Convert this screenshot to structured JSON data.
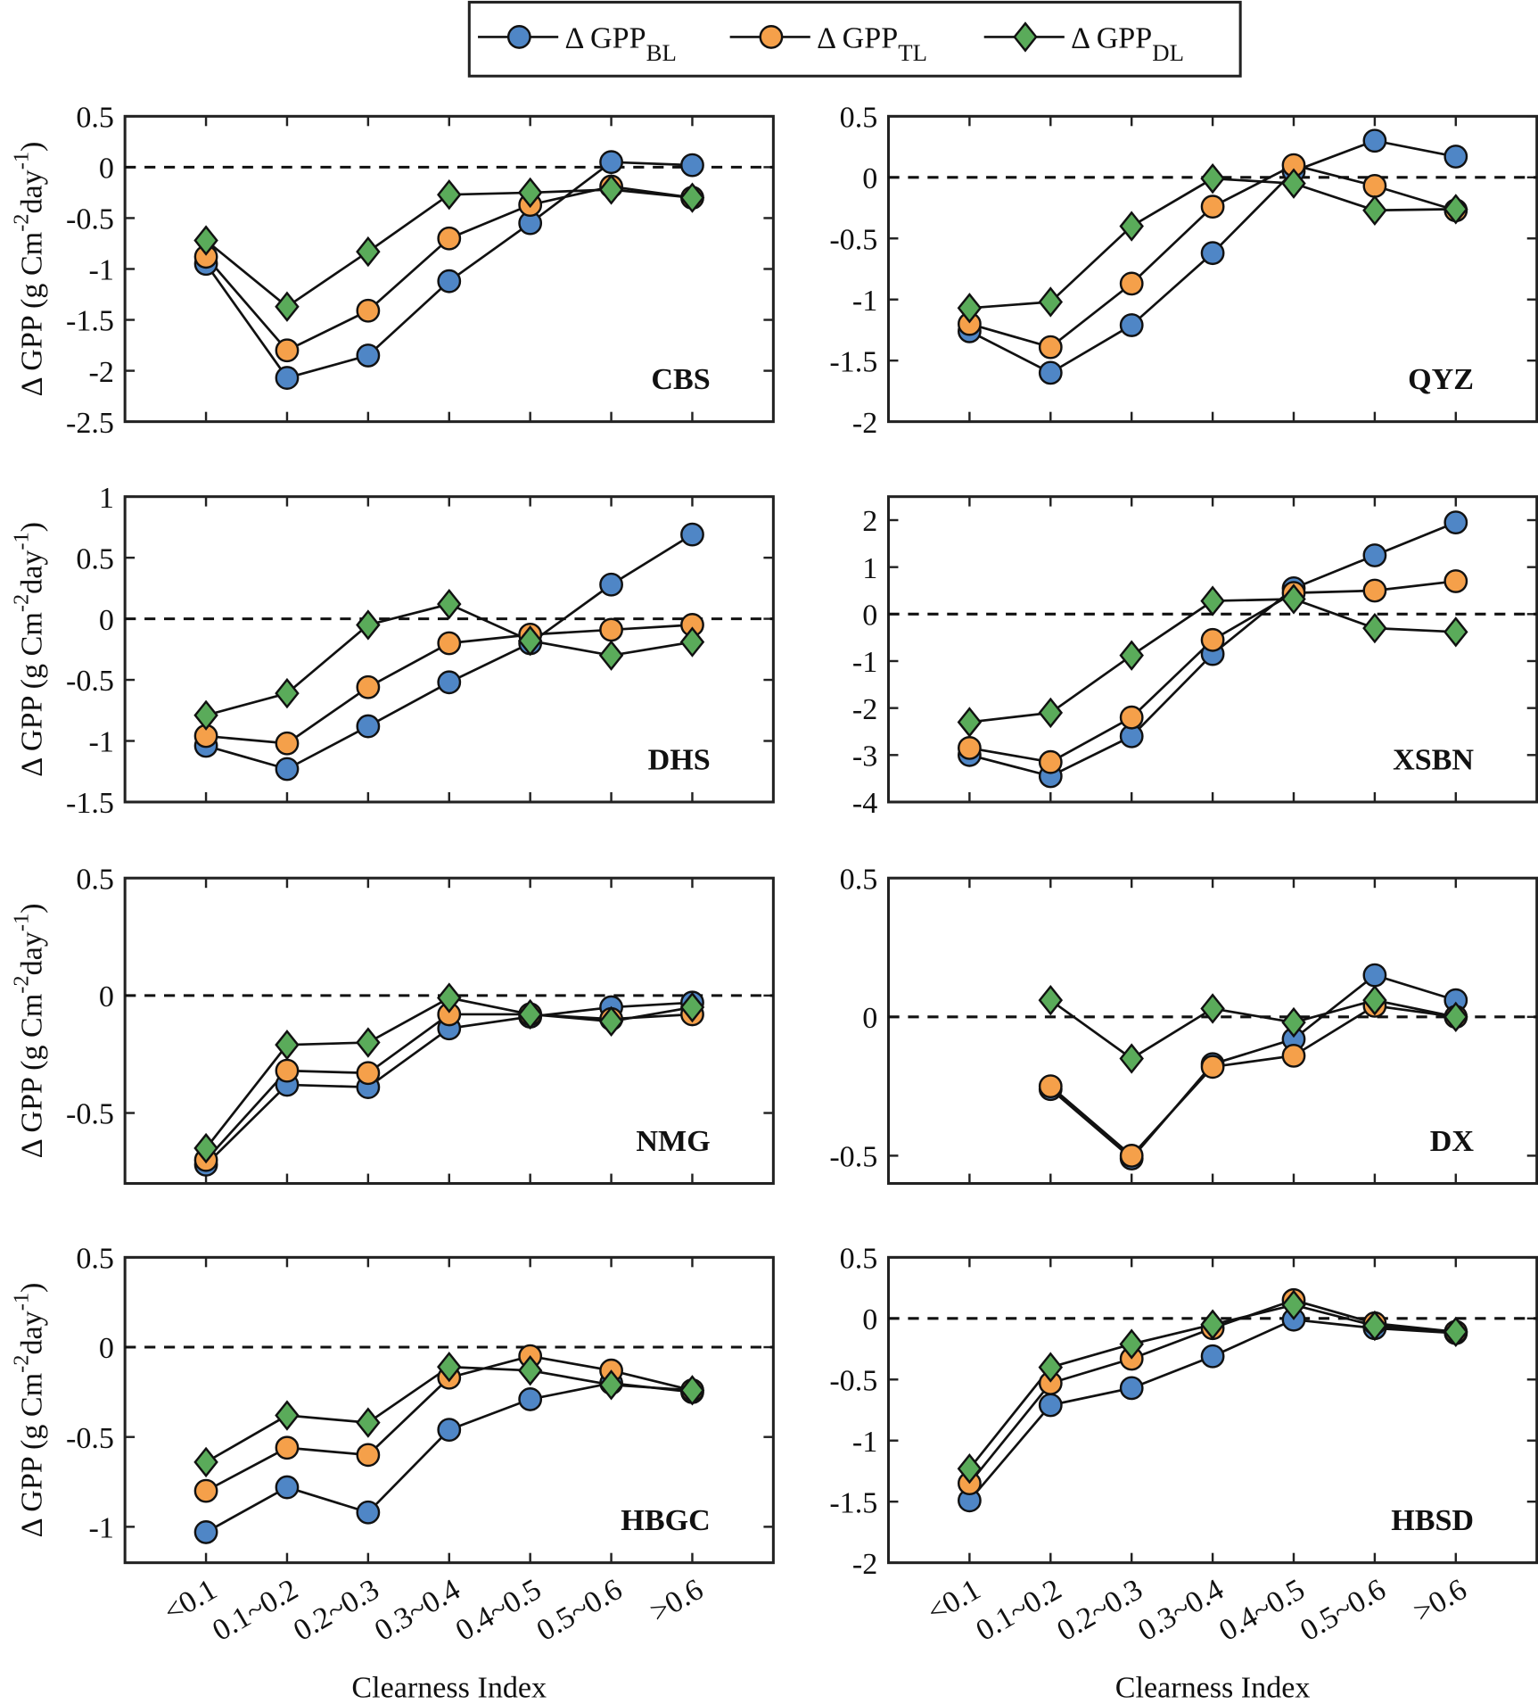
{
  "legend_prefix": "Δ GPP",
  "ylabel": [
    "Δ GPP (g Cm",
    "-2",
    "day",
    "-1",
    ")"
  ],
  "chart_data": [
    {
      "type": "line",
      "site": "CBS",
      "ylim": [
        -2.5,
        0.5
      ],
      "yticks": [
        0.5,
        0,
        -0.5,
        -1,
        -1.5,
        -2,
        -2.5
      ],
      "series": [
        {
          "name": "BL",
          "color": "#4f86c6",
          "marker": "circle",
          "values": [
            -0.95,
            -2.07,
            -1.85,
            -1.12,
            -0.55,
            0.05,
            0.02
          ]
        },
        {
          "name": "TL",
          "color": "#f5a04a",
          "marker": "circle",
          "values": [
            -0.88,
            -1.8,
            -1.41,
            -0.7,
            -0.37,
            -0.19,
            -0.3
          ]
        },
        {
          "name": "DL",
          "color": "#5aab5a",
          "marker": "diamond",
          "values": [
            -0.72,
            -1.37,
            -0.83,
            -0.27,
            -0.25,
            -0.22,
            -0.3
          ]
        }
      ]
    },
    {
      "type": "line",
      "site": "QYZ",
      "ylim": [
        -2,
        0.5
      ],
      "yticks": [
        0.5,
        0,
        -0.5,
        -1,
        -1.5,
        -2
      ],
      "series": [
        {
          "name": "BL",
          "color": "#4f86c6",
          "marker": "circle",
          "values": [
            -1.26,
            -1.6,
            -1.21,
            -0.62,
            0.05,
            0.3,
            0.17
          ]
        },
        {
          "name": "TL",
          "color": "#f5a04a",
          "marker": "circle",
          "values": [
            -1.2,
            -1.39,
            -0.87,
            -0.24,
            0.1,
            -0.07,
            -0.27
          ]
        },
        {
          "name": "DL",
          "color": "#5aab5a",
          "marker": "diamond",
          "values": [
            -1.07,
            -1.02,
            -0.4,
            -0.01,
            -0.05,
            -0.27,
            -0.26
          ]
        }
      ]
    },
    {
      "type": "line",
      "site": "DHS",
      "ylim": [
        -1.5,
        1
      ],
      "yticks": [
        1,
        0.5,
        0,
        -0.5,
        -1,
        -1.5
      ],
      "series": [
        {
          "name": "BL",
          "color": "#4f86c6",
          "marker": "circle",
          "values": [
            -1.04,
            -1.23,
            -0.88,
            -0.52,
            -0.2,
            0.28,
            0.69
          ]
        },
        {
          "name": "TL",
          "color": "#f5a04a",
          "marker": "circle",
          "values": [
            -0.96,
            -1.02,
            -0.56,
            -0.2,
            -0.13,
            -0.09,
            -0.05
          ]
        },
        {
          "name": "DL",
          "color": "#5aab5a",
          "marker": "diamond",
          "values": [
            -0.79,
            -0.61,
            -0.05,
            0.12,
            -0.18,
            -0.3,
            -0.19
          ]
        }
      ]
    },
    {
      "type": "line",
      "site": "XSBN",
      "ylim": [
        -4,
        2.5
      ],
      "yticks": [
        2,
        1,
        0,
        -1,
        -2,
        -3,
        -4
      ],
      "series": [
        {
          "name": "BL",
          "color": "#4f86c6",
          "marker": "circle",
          "values": [
            -3.0,
            -3.45,
            -2.6,
            -0.85,
            0.55,
            1.25,
            1.95
          ]
        },
        {
          "name": "TL",
          "color": "#f5a04a",
          "marker": "circle",
          "values": [
            -2.85,
            -3.15,
            -2.2,
            -0.55,
            0.45,
            0.5,
            0.7
          ]
        },
        {
          "name": "DL",
          "color": "#5aab5a",
          "marker": "diamond",
          "values": [
            -2.3,
            -2.1,
            -0.88,
            0.28,
            0.32,
            -0.3,
            -0.38
          ]
        }
      ]
    },
    {
      "type": "line",
      "site": "NMG",
      "ylim": [
        -0.8,
        0.5
      ],
      "yticks": [
        0.5,
        0,
        -0.5
      ],
      "series": [
        {
          "name": "BL",
          "color": "#4f86c6",
          "marker": "circle",
          "values": [
            -0.72,
            -0.38,
            -0.39,
            -0.14,
            -0.09,
            -0.05,
            -0.03
          ]
        },
        {
          "name": "TL",
          "color": "#f5a04a",
          "marker": "circle",
          "values": [
            -0.7,
            -0.32,
            -0.33,
            -0.08,
            -0.08,
            -0.1,
            -0.08
          ]
        },
        {
          "name": "DL",
          "color": "#5aab5a",
          "marker": "diamond",
          "values": [
            -0.65,
            -0.21,
            -0.2,
            -0.01,
            -0.08,
            -0.11,
            -0.05
          ]
        }
      ]
    },
    {
      "type": "line",
      "site": "DX",
      "ylim": [
        -0.6,
        0.5
      ],
      "yticks": [
        0.5,
        0,
        -0.5
      ],
      "series": [
        {
          "name": "BL",
          "color": "#4f86c6",
          "marker": "circle",
          "values": [
            null,
            -0.26,
            -0.51,
            -0.17,
            -0.08,
            0.15,
            0.06
          ]
        },
        {
          "name": "TL",
          "color": "#f5a04a",
          "marker": "circle",
          "values": [
            null,
            -0.25,
            -0.5,
            -0.18,
            -0.14,
            0.04,
            0.0
          ]
        },
        {
          "name": "DL",
          "color": "#5aab5a",
          "marker": "diamond",
          "values": [
            null,
            0.06,
            -0.15,
            0.03,
            -0.02,
            0.06,
            0.0
          ]
        }
      ]
    },
    {
      "type": "line",
      "site": "HBGC",
      "ylim": [
        -1.2,
        0.5
      ],
      "yticks": [
        0.5,
        0,
        -0.5,
        -1
      ],
      "xlabel": "Clearness Index",
      "categories": [
        "<0.1",
        "0.1~0.2",
        "0.2~0.3",
        "0.3~0.4",
        "0.4~0.5",
        "0.5~0.6",
        ">0.6"
      ],
      "series": [
        {
          "name": "BL",
          "color": "#4f86c6",
          "marker": "circle",
          "values": [
            -1.03,
            -0.78,
            -0.92,
            -0.46,
            -0.29,
            -0.2,
            -0.25
          ]
        },
        {
          "name": "TL",
          "color": "#f5a04a",
          "marker": "circle",
          "values": [
            -0.8,
            -0.56,
            -0.6,
            -0.17,
            -0.05,
            -0.13,
            -0.24
          ]
        },
        {
          "name": "DL",
          "color": "#5aab5a",
          "marker": "diamond",
          "values": [
            -0.64,
            -0.38,
            -0.42,
            -0.11,
            -0.13,
            -0.21,
            -0.24
          ]
        }
      ]
    },
    {
      "type": "line",
      "site": "HBSD",
      "ylim": [
        -2,
        0.5
      ],
      "yticks": [
        0.5,
        0,
        -0.5,
        -1,
        -1.5,
        -2
      ],
      "xlabel": "Clearness Index",
      "categories": [
        "<0.1",
        "0.1~0.2",
        "0.2~0.3",
        "0.3~0.4",
        "0.4~0.5",
        "0.5~0.6",
        ">0.6"
      ],
      "series": [
        {
          "name": "BL",
          "color": "#4f86c6",
          "marker": "circle",
          "values": [
            -1.49,
            -0.71,
            -0.57,
            -0.31,
            -0.01,
            -0.08,
            -0.12
          ]
        },
        {
          "name": "TL",
          "color": "#f5a04a",
          "marker": "circle",
          "values": [
            -1.35,
            -0.53,
            -0.33,
            -0.08,
            0.15,
            -0.04,
            -0.11
          ]
        },
        {
          "name": "DL",
          "color": "#5aab5a",
          "marker": "diamond",
          "values": [
            -1.23,
            -0.4,
            -0.21,
            -0.05,
            0.11,
            -0.06,
            -0.11
          ]
        }
      ]
    }
  ]
}
